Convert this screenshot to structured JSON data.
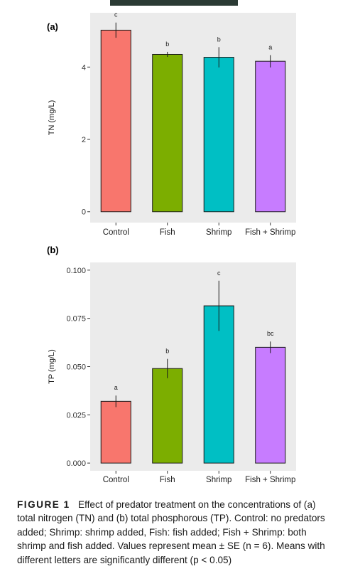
{
  "chart_data": [
    {
      "type": "bar",
      "panel_label": "(a)",
      "ylabel": "TN (mg/L)",
      "categories": [
        "Control",
        "Fish",
        "Shrimp",
        "Fish + Shrimp"
      ],
      "values": [
        5.02,
        4.35,
        4.27,
        4.16
      ],
      "errors": [
        0.21,
        0.07,
        0.28,
        0.17
      ],
      "significance": [
        "c",
        "b",
        "b",
        "a"
      ],
      "colors": [
        "#F8766D",
        "#7CAE00",
        "#00BFC4",
        "#C77CFF"
      ],
      "ylim": [
        -0.3,
        5.5
      ],
      "yticks": [
        0,
        2,
        4
      ],
      "ytick_labels": [
        "0",
        "2",
        "4"
      ],
      "grid": false,
      "panel_background": "#EBEBEB"
    },
    {
      "type": "bar",
      "panel_label": "(b)",
      "ylabel": "TP (mg/L)",
      "categories": [
        "Control",
        "Fish",
        "Shrimp",
        "Fish + Shrimp"
      ],
      "values": [
        0.032,
        0.049,
        0.0815,
        0.06
      ],
      "errors": [
        0.003,
        0.005,
        0.013,
        0.003
      ],
      "significance": [
        "a",
        "b",
        "c",
        "bc"
      ],
      "colors": [
        "#F8766D",
        "#7CAE00",
        "#00BFC4",
        "#C77CFF"
      ],
      "ylim": [
        -0.004,
        0.104
      ],
      "yticks": [
        0,
        0.025,
        0.05,
        0.075,
        0.1
      ],
      "ytick_labels": [
        "0.000",
        "0.025",
        "0.050",
        "0.075",
        "0.100"
      ],
      "grid": false,
      "panel_background": "#EBEBEB"
    }
  ],
  "caption": {
    "figure_label": "FIGURE 1",
    "text": "Effect of predator treatment on the concentrations of (a) total nitrogen (TN) and (b) total phosphorous (TP). Control: no predators added; Shrimp: shrimp added, Fish: fish added; Fish + Shrimp: both shrimp and fish added. Values represent mean ± SE (n = 6). Means with different letters are significantly different (p < 0.05)"
  }
}
